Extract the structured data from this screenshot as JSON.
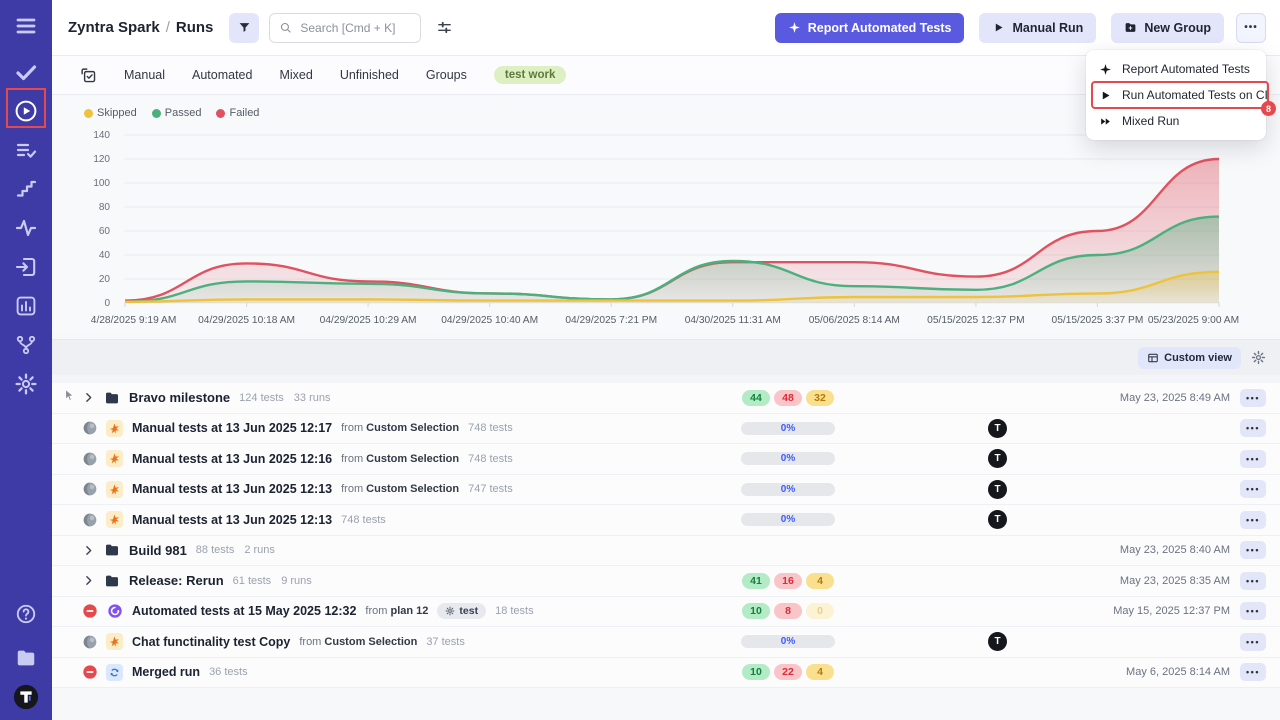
{
  "colors": {
    "sidebar_bg": "#3e3ba6",
    "accent": "#5a5ae0",
    "annotation": "#e5484d",
    "passed": "#4caf7e",
    "failed": "#df5260",
    "skipped": "#edc23c"
  },
  "sidebar": {
    "items": [
      {
        "icon": "menu-icon"
      },
      {
        "icon": "check-icon"
      },
      {
        "icon": "play-circle-icon",
        "active": true,
        "annotated": true
      },
      {
        "icon": "list-check-icon"
      },
      {
        "icon": "stairs-icon"
      },
      {
        "icon": "activity-icon"
      },
      {
        "icon": "import-icon"
      },
      {
        "icon": "bar-chart-icon"
      },
      {
        "icon": "branch-icon"
      },
      {
        "icon": "gear-icon"
      }
    ],
    "footer": [
      {
        "icon": "help-icon"
      },
      {
        "icon": "folder-icon"
      }
    ],
    "logo_letter": "T"
  },
  "header": {
    "breadcrumb": {
      "project": "Zyntra Spark",
      "separator": "/",
      "page": "Runs"
    },
    "search": {
      "placeholder": "Search [Cmd + K]"
    },
    "buttons": {
      "report": "Report Automated Tests",
      "manual": "Manual Run",
      "new_group": "New Group",
      "more": "•••"
    }
  },
  "dropdown": {
    "items": [
      {
        "icon": "pinwheel-icon",
        "label": "Report Automated Tests"
      },
      {
        "icon": "play-icon",
        "label": "Run Automated Tests on CI",
        "highlighted": true,
        "badge": "8"
      },
      {
        "icon": "fast-forward-icon",
        "label": "Mixed Run"
      }
    ]
  },
  "tabs": {
    "items": [
      "Manual",
      "Automated",
      "Mixed",
      "Unfinished",
      "Groups"
    ],
    "tag": "test work"
  },
  "legend": [
    {
      "label": "Skipped",
      "color": "#edc23c"
    },
    {
      "label": "Passed",
      "color": "#4caf7e"
    },
    {
      "label": "Failed",
      "color": "#df5260"
    }
  ],
  "chart_data": {
    "type": "area",
    "title": "",
    "xlabel": "",
    "ylabel": "",
    "grid": true,
    "legend_position": "top-left",
    "ylim": [
      0,
      140
    ],
    "yticks": [
      0,
      20,
      40,
      60,
      80,
      100,
      120,
      140
    ],
    "x": [
      "4/28/2025 9:19 AM",
      "04/29/2025 10:18 AM",
      "04/29/2025 10:29 AM",
      "04/29/2025 10:40 AM",
      "04/29/2025 7:21 PM",
      "04/30/2025 11:31 AM",
      "05/06/2025 8:14 AM",
      "05/15/2025 12:37 PM",
      "05/15/2025 3:37 PM",
      "05/23/2025 9:00 AM"
    ],
    "series": [
      {
        "name": "Failed",
        "color": "#df5260",
        "values": [
          2,
          33,
          18,
          8,
          3,
          34,
          34,
          22,
          60,
          120
        ]
      },
      {
        "name": "Passed",
        "color": "#4caf7e",
        "values": [
          1,
          18,
          16,
          8,
          3,
          35,
          14,
          11,
          40,
          72
        ]
      },
      {
        "name": "Skipped",
        "color": "#edc23c",
        "values": [
          1,
          3,
          3,
          2,
          2,
          2,
          5,
          5,
          8,
          26
        ]
      }
    ]
  },
  "toolbar": {
    "custom_view": "Custom view"
  },
  "runs_table": {
    "from_prefix": "from",
    "rows": [
      {
        "kind": "group",
        "cursor": true,
        "name": "Bravo milestone",
        "meta": [
          "124 tests",
          "33 runs"
        ],
        "badges": [
          {
            "value": "44",
            "type": "passed"
          },
          {
            "value": "48",
            "type": "failed"
          },
          {
            "value": "32",
            "type": "skipped"
          }
        ],
        "date": "May 23, 2025 8:49 AM"
      },
      {
        "kind": "run",
        "status": "pending",
        "type": "manual",
        "name": "Manual tests at 13 Jun 2025 12:17",
        "from": "Custom Selection",
        "meta": [
          "748 tests"
        ],
        "progress": "0%",
        "assignee": "T"
      },
      {
        "kind": "run",
        "status": "pending",
        "type": "manual",
        "name": "Manual tests at 13 Jun 2025 12:16",
        "from": "Custom Selection",
        "meta": [
          "748 tests"
        ],
        "progress": "0%",
        "assignee": "T"
      },
      {
        "kind": "run",
        "status": "pending",
        "type": "manual",
        "name": "Manual tests at 13 Jun 2025 12:13",
        "from": "Custom Selection",
        "meta": [
          "747 tests"
        ],
        "progress": "0%",
        "assignee": "T"
      },
      {
        "kind": "run",
        "status": "pending",
        "type": "manual",
        "name": "Manual tests at 13 Jun 2025 12:13",
        "meta": [
          "748 tests"
        ],
        "progress": "0%",
        "assignee": "T"
      },
      {
        "kind": "group",
        "name": "Build 981",
        "meta": [
          "88 tests",
          "2 runs"
        ],
        "date": "May 23, 2025 8:40 AM"
      },
      {
        "kind": "group",
        "name": "Release: Rerun",
        "meta": [
          "61 tests",
          "9 runs"
        ],
        "badges": [
          {
            "value": "41",
            "type": "passed"
          },
          {
            "value": "16",
            "type": "failed"
          },
          {
            "value": "4",
            "type": "skipped"
          }
        ],
        "date": "May 23, 2025 8:35 AM"
      },
      {
        "kind": "run",
        "status": "failed",
        "type": "automated",
        "name": "Automated tests at 15 May 2025 12:32",
        "from": "plan 12",
        "tag": "test",
        "meta": [
          "18 tests"
        ],
        "badges": [
          {
            "value": "10",
            "type": "passed"
          },
          {
            "value": "8",
            "type": "failed"
          },
          {
            "value": "0",
            "type": "skipped",
            "muted": true
          }
        ],
        "date": "May 15, 2025 12:37 PM"
      },
      {
        "kind": "run",
        "status": "pending",
        "type": "manual",
        "name": "Chat functinality test Copy",
        "from": "Custom Selection",
        "meta": [
          "37 tests"
        ],
        "progress": "0%",
        "assignee": "T"
      },
      {
        "kind": "run",
        "status": "failed",
        "type": "merged",
        "name": "Merged run",
        "meta": [
          "36 tests"
        ],
        "badges": [
          {
            "value": "10",
            "type": "passed"
          },
          {
            "value": "22",
            "type": "failed"
          },
          {
            "value": "4",
            "type": "skipped"
          }
        ],
        "date": "May 6, 2025 8:14 AM"
      }
    ]
  }
}
